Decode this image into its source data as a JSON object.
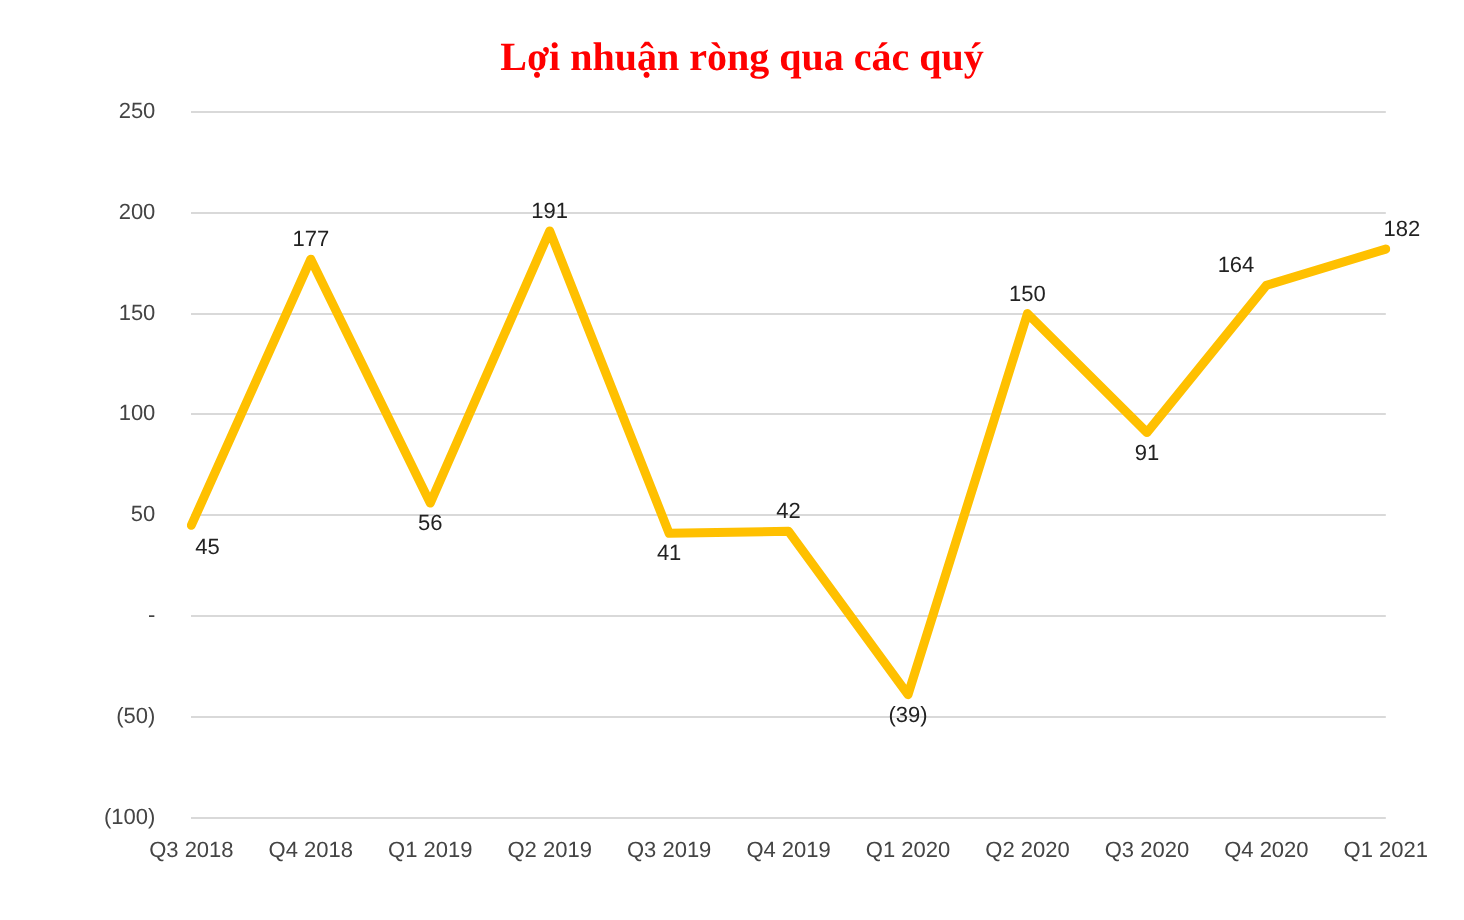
{
  "chart_data": {
    "type": "line",
    "title": "Lợi nhuận ròng qua các quý",
    "categories": [
      "Q3 2018",
      "Q4 2018",
      "Q1 2019",
      "Q2 2019",
      "Q3 2019",
      "Q4 2019",
      "Q1 2020",
      "Q2 2020",
      "Q3 2020",
      "Q4 2020",
      "Q1 2021"
    ],
    "series": [
      {
        "color": "#ffc000",
        "values": [
          45,
          177,
          56,
          191,
          41,
          42,
          -39,
          150,
          91,
          164,
          182
        ],
        "value_labels": [
          "45",
          "177",
          "56",
          "191",
          "41",
          "42",
          "(39)",
          "150",
          "91",
          "164",
          "182"
        ]
      }
    ],
    "ylim": [
      -100,
      250
    ],
    "yticks": [
      {
        "value": -100,
        "label": "(100)"
      },
      {
        "value": -50,
        "label": "(50)"
      },
      {
        "value": 0,
        "label": "-"
      },
      50,
      100,
      150,
      200,
      250
    ],
    "grid": "y",
    "legend": false,
    "marker": "none",
    "line_style": "solid"
  }
}
